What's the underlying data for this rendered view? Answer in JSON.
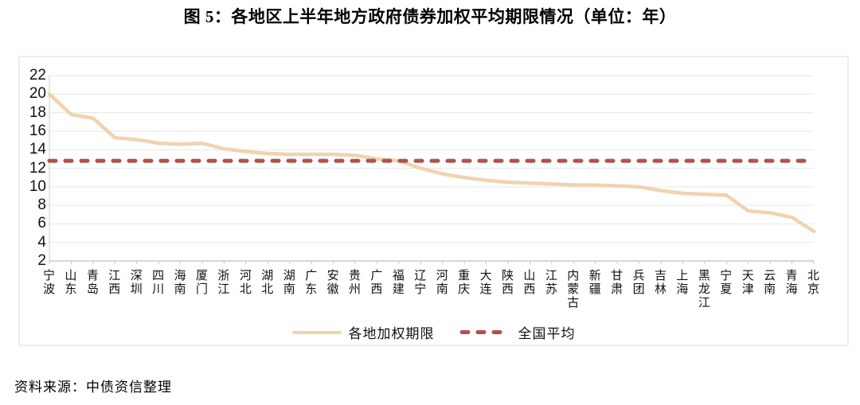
{
  "title": "图 5：各地区上半年地方政府债券加权平均期限情况（单位：年）",
  "source_note": "资料来源：中债资信整理",
  "legend": {
    "items": [
      {
        "label": "各地加权期限"
      },
      {
        "label": "全国平均"
      }
    ]
  },
  "colors": {
    "series_line": "#f0d3ae",
    "average_line": "#b0524c",
    "gridline": "#eaeaea",
    "axis_line": "#bdbdbd",
    "y_axis_line": "#d6d6d6",
    "tick": "#c9c9c9",
    "text": "#111111"
  },
  "chart_data": {
    "type": "line",
    "title": "图 5：各地区上半年地方政府债券加权平均期限情况（单位：年）",
    "xlabel": "",
    "ylabel": "",
    "ylim": [
      2,
      22
    ],
    "ytick_step": 2,
    "grid": true,
    "legend_position": "bottom",
    "categories": [
      "宁波",
      "山东",
      "青岛",
      "江西",
      "深圳",
      "四川",
      "海南",
      "厦门",
      "浙江",
      "河北",
      "湖北",
      "湖南",
      "广东",
      "安徽",
      "贵州",
      "广西",
      "福建",
      "辽宁",
      "河南",
      "重庆",
      "大连",
      "陕西",
      "山西",
      "江苏",
      "内蒙古",
      "新疆",
      "甘肃",
      "兵团",
      "吉林",
      "上海",
      "黑龙江",
      "宁夏",
      "天津",
      "云南",
      "青海",
      "北京"
    ],
    "series": [
      {
        "name": "各地加权期限",
        "style": "solid",
        "color": "#f0d3ae",
        "values": [
          20.0,
          17.8,
          17.4,
          15.3,
          15.1,
          14.7,
          14.6,
          14.7,
          14.1,
          13.8,
          13.6,
          13.5,
          13.5,
          13.5,
          13.4,
          13.0,
          12.8,
          12.0,
          11.4,
          11.0,
          10.7,
          10.5,
          10.4,
          10.3,
          10.2,
          10.2,
          10.1,
          10.0,
          9.6,
          9.3,
          9.2,
          9.1,
          7.4,
          7.2,
          6.7,
          5.2
        ]
      },
      {
        "name": "全国平均",
        "style": "dashed",
        "color": "#b0524c",
        "type": "constant",
        "value": 12.8
      }
    ]
  }
}
